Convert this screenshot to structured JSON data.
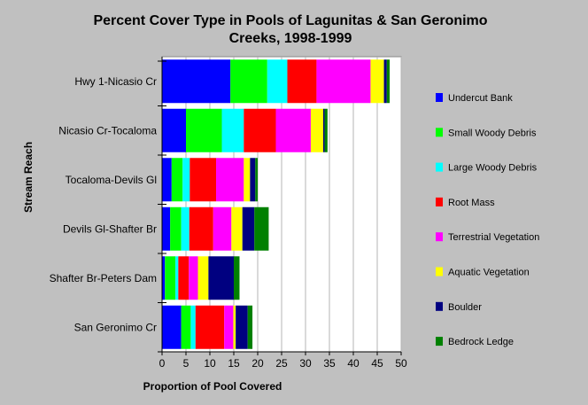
{
  "chart_data": {
    "type": "bar",
    "orientation": "horizontal",
    "stacked": true,
    "title": "Percent Cover Type in Pools of Lagunitas & San Geronimo Creeks, 1998-1999",
    "title_lines": [
      "Percent Cover Type in Pools of Lagunitas & San Geronimo",
      "Creeks, 1998-1999"
    ],
    "xlabel": "Proportion of Pool Covered",
    "ylabel": "Stream Reach",
    "xlim": [
      0,
      50
    ],
    "xticks": [
      "0",
      "5",
      "10",
      "15",
      "20",
      "25",
      "30",
      "35",
      "40",
      "45",
      "50"
    ],
    "grid": "vertical",
    "legend_position": "right",
    "categories": [
      "Hwy 1-Nicasio Cr",
      "Nicasio Cr-Tocaloma",
      "Tocaloma-Devils Gl",
      "Devils Gl-Shafter Br",
      "Shafter Br-Peters Dam",
      "San Geronimo Cr"
    ],
    "series": [
      {
        "name": "Undercut Bank",
        "color": "#0000ff",
        "values": [
          14.3,
          5.0,
          2.0,
          1.7,
          0.6,
          4.0
        ]
      },
      {
        "name": "Small Woody Debris",
        "color": "#00ff00",
        "values": [
          7.7,
          7.5,
          2.3,
          2.3,
          2.2,
          2.0
        ]
      },
      {
        "name": "Large Woody Debris",
        "color": "#00ffff",
        "values": [
          4.2,
          4.6,
          1.5,
          1.7,
          0.6,
          1.0
        ]
      },
      {
        "name": "Root Mass",
        "color": "#ff0000",
        "values": [
          6.1,
          6.7,
          5.5,
          5.0,
          2.2,
          6.0
        ]
      },
      {
        "name": "Terrestrial Vegetation",
        "color": "#ff00ff",
        "values": [
          11.3,
          7.3,
          5.8,
          3.8,
          1.9,
          1.9
        ]
      },
      {
        "name": "Aquatic Vegetation",
        "color": "#ffff00",
        "values": [
          2.8,
          2.6,
          1.3,
          2.3,
          2.2,
          0.5
        ]
      },
      {
        "name": "Boulder",
        "color": "#000080",
        "values": [
          0.6,
          0.3,
          1.1,
          2.5,
          5.3,
          2.5
        ]
      },
      {
        "name": "Bedrock Ledge",
        "color": "#008000",
        "values": [
          0.6,
          0.6,
          0.5,
          3.0,
          1.2,
          1.0
        ]
      }
    ]
  }
}
